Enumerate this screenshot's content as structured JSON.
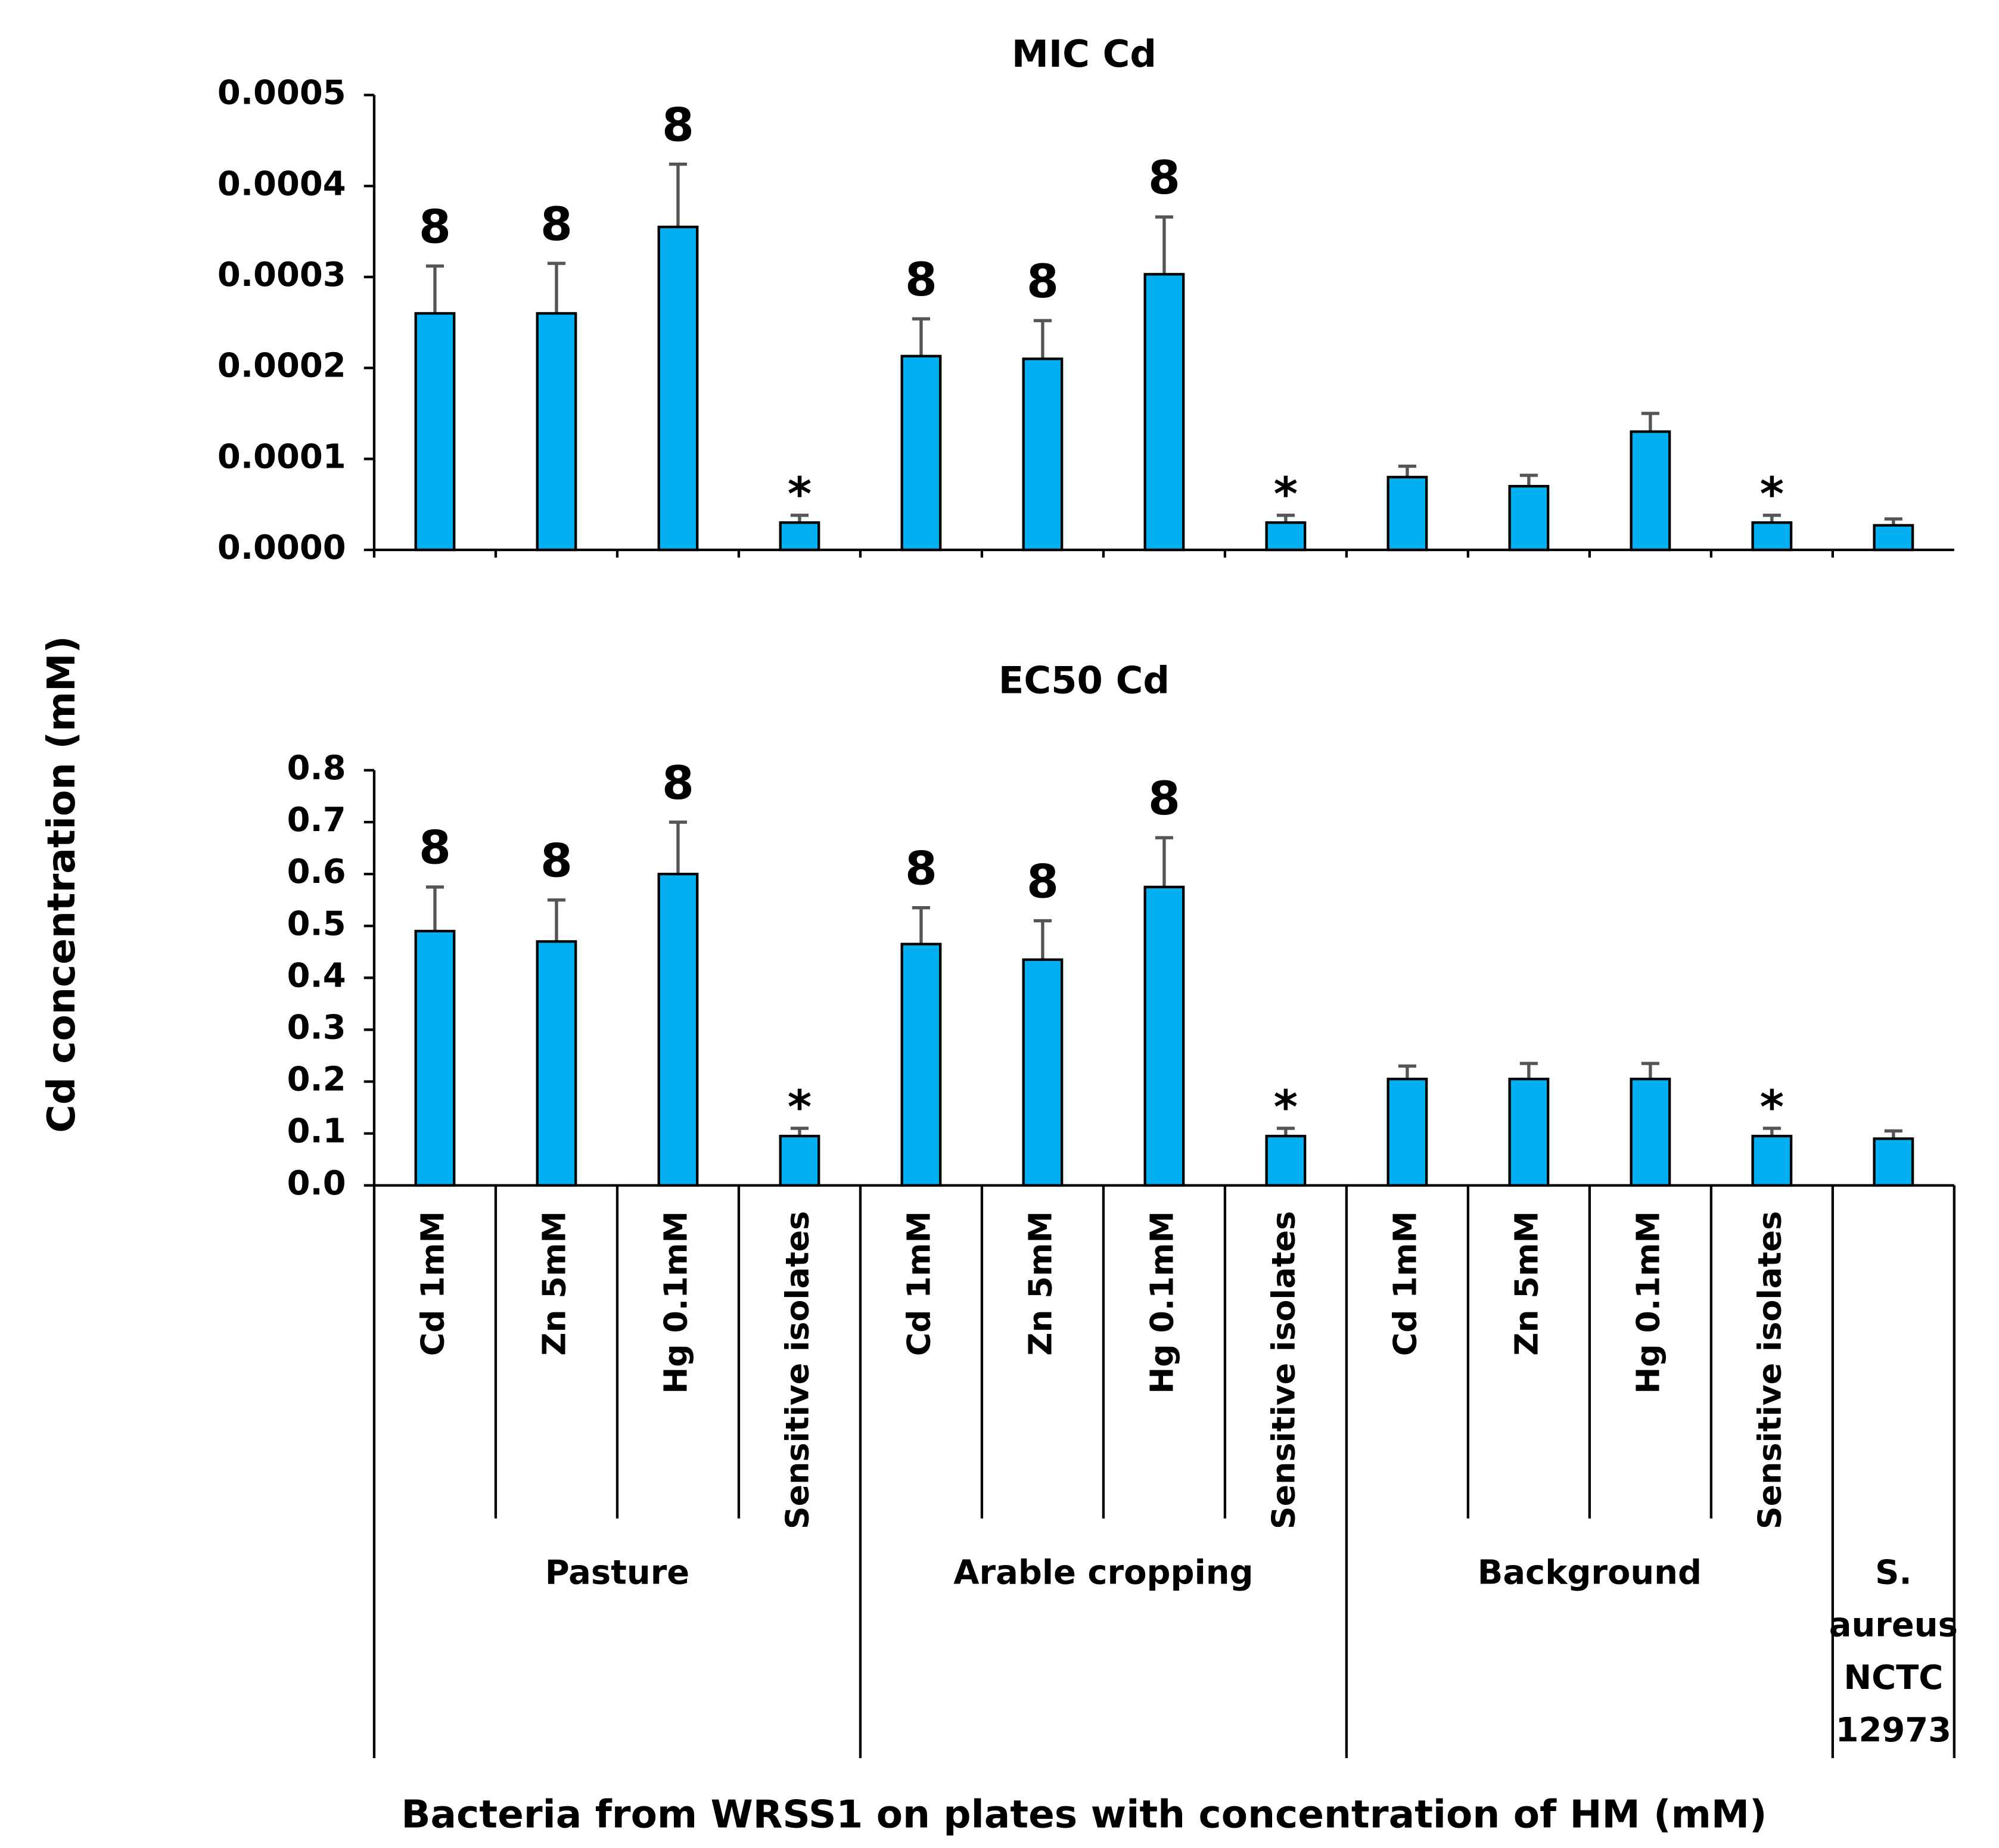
{
  "chart_data": [
    {
      "type": "bar",
      "title": "MIC Cd",
      "color": "#00b0f0",
      "values": [
        0.00026,
        0.00026,
        0.000355,
        3e-05,
        0.000213,
        0.00021,
        0.000303,
        3e-05,
        8e-05,
        7e-05,
        0.00013,
        3e-05,
        2.7e-05
      ],
      "errors": [
        5.2e-05,
        5.5e-05,
        6.9e-05,
        8e-06,
        4.1e-05,
        4.2e-05,
        6.3e-05,
        8e-06,
        1.2e-05,
        1.2e-05,
        2e-05,
        8e-06,
        7e-06
      ],
      "annotations": [
        "8",
        "8",
        "8",
        "*",
        "8",
        "8",
        "8",
        "*",
        null,
        null,
        null,
        "*",
        null
      ],
      "ylim": [
        0,
        0.0005
      ],
      "yticks": [
        {
          "value": 0,
          "label": "0.0000"
        },
        0.0001,
        0.0002,
        0.0003,
        0.0004,
        0.0005
      ]
    },
    {
      "type": "bar",
      "title": "EC50 Cd",
      "color": "#00b0f0",
      "xlabel": "Bacteria from WRSS1 on plates with concentration of HM (mM)",
      "ylabel": "Cd concentration (mM)",
      "groups": [
        {
          "label": "Pasture",
          "categories": [
            "Cd 1mM",
            "Zn 5mM",
            "Hg 0.1mM",
            "Sensitive isolates"
          ]
        },
        {
          "label": "Arable cropping",
          "categories": [
            "Cd 1mM",
            "Zn 5mM",
            "Hg 0.1mM",
            "Sensitive isolates"
          ]
        },
        {
          "label": "Background",
          "categories": [
            "Cd 1mM",
            "Zn 5mM",
            "Hg 0.1mM",
            "Sensitive isolates"
          ]
        },
        {
          "label": "S. aureus NCTC 12973",
          "categories": [
            null
          ]
        }
      ],
      "values": [
        0.49,
        0.47,
        0.6,
        0.095,
        0.465,
        0.435,
        0.575,
        0.095,
        0.205,
        0.205,
        0.205,
        0.095,
        0.09
      ],
      "errors": [
        0.085,
        0.08,
        0.1,
        0.015,
        0.07,
        0.075,
        0.095,
        0.015,
        0.025,
        0.03,
        0.03,
        0.015,
        0.015
      ],
      "annotations": [
        "8",
        "8",
        "8",
        "*",
        "8",
        "8",
        "8",
        "*",
        null,
        null,
        null,
        "*",
        null
      ],
      "ylim": [
        0,
        0.8
      ],
      "yticks": [
        {
          "value": 0,
          "label": "0.0"
        },
        0.1,
        0.2,
        0.3,
        0.4,
        0.5,
        0.6,
        0.7,
        0.8
      ]
    }
  ]
}
